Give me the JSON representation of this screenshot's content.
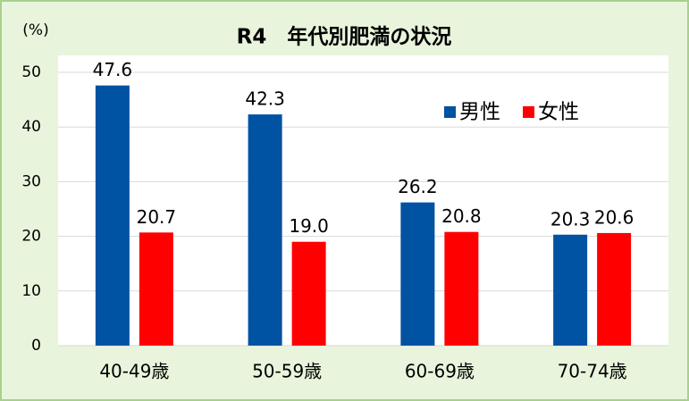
{
  "chart_data": {
    "type": "bar",
    "title": "R4　年代別肥満の状況",
    "y_label": "(%)",
    "categories": [
      "40-49歳",
      "50-59歳",
      "60-69歳",
      "70-74歳"
    ],
    "series": [
      {
        "name": "男性",
        "color": "#0052a2",
        "values": [
          47.6,
          42.3,
          26.2,
          20.3
        ],
        "value_labels": [
          "47.6",
          "42.3",
          "26.2",
          "20.3"
        ]
      },
      {
        "name": "女性",
        "color": "#ff0000",
        "values": [
          20.7,
          19.0,
          20.8,
          20.6
        ],
        "value_labels": [
          "20.7",
          "19.0",
          "20.8",
          "20.6"
        ]
      }
    ],
    "ylim": [
      0,
      50
    ],
    "yticks": [
      0,
      10,
      20,
      30,
      40,
      50
    ],
    "grid": true
  }
}
